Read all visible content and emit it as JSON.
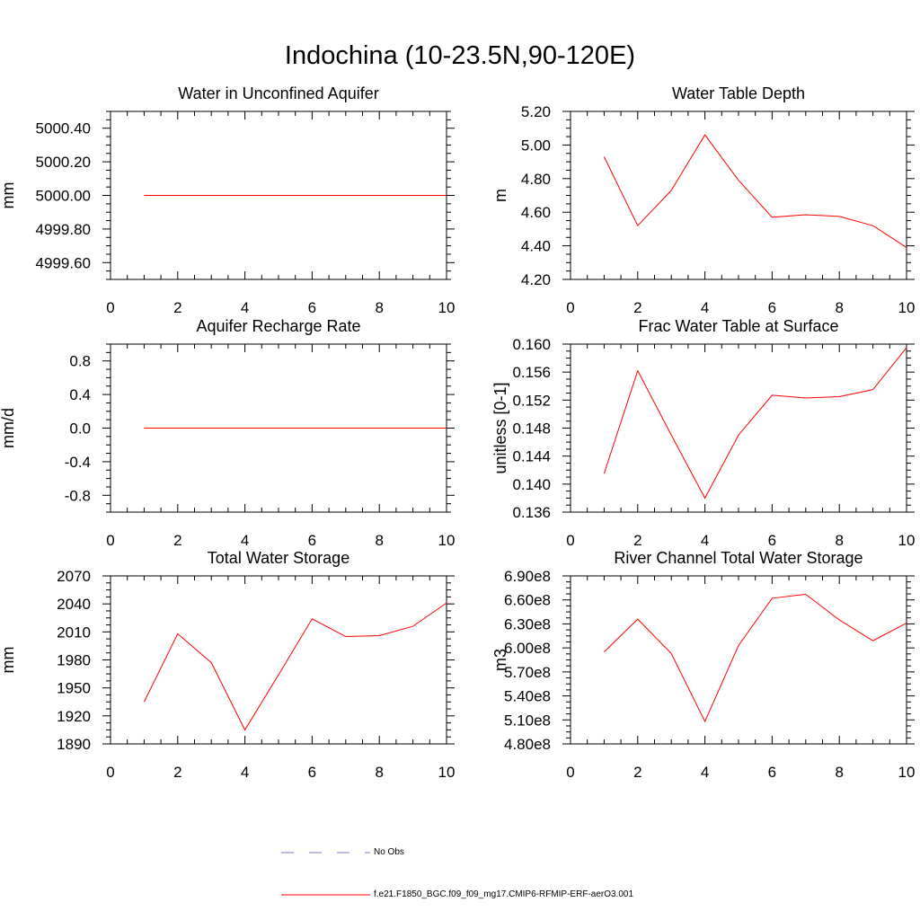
{
  "title": "Indochina (10-23.5N,90-120E)",
  "colors": {
    "model_line": "#ff0000",
    "obs_line": "#7b7bc8",
    "axis": "#000000"
  },
  "legend": [
    {
      "label": "No Obs",
      "style": "dashed",
      "color": "#7b7bc8"
    },
    {
      "label": "f.e21.F1850_BGC.f09_f09_mg17.CMIP6-RFMIP-ERF-aerO3.001",
      "style": "solid",
      "color": "#ff0000"
    }
  ],
  "chart_data": [
    {
      "type": "line",
      "title": "Water in Unconfined Aquifer",
      "ylabel": "mm",
      "xlim": [
        0,
        10
      ],
      "ylim": [
        4999.5,
        5000.5
      ],
      "xticks": [
        0,
        2,
        4,
        6,
        8,
        10
      ],
      "yticks": [
        4999.6,
        4999.8,
        5000.0,
        5000.2,
        5000.4
      ],
      "ytick_labels": [
        "4999.60",
        "4999.80",
        "5000.00",
        "5000.20",
        "5000.40"
      ],
      "x": [
        1,
        2,
        3,
        4,
        5,
        6,
        7,
        8,
        9,
        10
      ],
      "series": [
        {
          "values": [
            5000,
            5000,
            5000,
            5000,
            5000,
            5000,
            5000,
            5000,
            5000,
            5000
          ]
        }
      ]
    },
    {
      "type": "line",
      "title": "Water Table Depth",
      "ylabel": "m",
      "xlim": [
        0,
        10
      ],
      "ylim": [
        4.2,
        5.2
      ],
      "xticks": [
        0,
        2,
        4,
        6,
        8,
        10
      ],
      "yticks": [
        4.2,
        4.4,
        4.6,
        4.8,
        5.0,
        5.2
      ],
      "ytick_labels": [
        "4.20",
        "4.40",
        "4.60",
        "4.80",
        "5.00",
        "5.20"
      ],
      "x": [
        1,
        2,
        3,
        4,
        5,
        6,
        7,
        8,
        9,
        10
      ],
      "series": [
        {
          "values": [
            4.93,
            4.52,
            4.73,
            5.06,
            4.79,
            4.57,
            4.585,
            4.575,
            4.52,
            4.39
          ]
        }
      ]
    },
    {
      "type": "line",
      "title": "Aquifer Recharge Rate",
      "ylabel": "mm/d",
      "xlim": [
        0,
        10
      ],
      "ylim": [
        -1.0,
        1.0
      ],
      "xticks": [
        0,
        2,
        4,
        6,
        8,
        10
      ],
      "yticks": [
        -0.8,
        -0.4,
        0.0,
        0.4,
        0.8
      ],
      "ytick_labels": [
        "-0.8",
        "-0.4",
        "0.0",
        "0.4",
        "0.8"
      ],
      "x": [
        1,
        2,
        3,
        4,
        5,
        6,
        7,
        8,
        9,
        10
      ],
      "series": [
        {
          "values": [
            0,
            0,
            0,
            0,
            0,
            0,
            0,
            0,
            0,
            0
          ]
        }
      ]
    },
    {
      "type": "line",
      "title": "Frac Water Table at Surface",
      "ylabel": "unitless [0-1]",
      "xlim": [
        0,
        10
      ],
      "ylim": [
        0.136,
        0.16
      ],
      "xticks": [
        0,
        2,
        4,
        6,
        8,
        10
      ],
      "yticks": [
        0.136,
        0.14,
        0.144,
        0.148,
        0.152,
        0.156,
        0.16
      ],
      "ytick_labels": [
        "0.136",
        "0.140",
        "0.144",
        "0.148",
        "0.152",
        "0.156",
        "0.160"
      ],
      "x": [
        1,
        2,
        3,
        4,
        5,
        6,
        7,
        8,
        9,
        10
      ],
      "series": [
        {
          "values": [
            0.1415,
            0.1562,
            0.147,
            0.138,
            0.147,
            0.1527,
            0.1523,
            0.1525,
            0.1535,
            0.1595
          ]
        }
      ]
    },
    {
      "type": "line",
      "title": "Total Water Storage",
      "ylabel": "mm",
      "xlim": [
        0,
        10
      ],
      "ylim": [
        1890,
        2070
      ],
      "xticks": [
        0,
        2,
        4,
        6,
        8,
        10
      ],
      "yticks": [
        1890,
        1920,
        1950,
        1980,
        2010,
        2040,
        2070
      ],
      "ytick_labels": [
        "1890",
        "1920",
        "1950",
        "1980",
        "2010",
        "2040",
        "2070"
      ],
      "x": [
        1,
        2,
        3,
        4,
        5,
        6,
        7,
        8,
        9,
        10
      ],
      "series": [
        {
          "values": [
            1935,
            2008,
            1977,
            1905,
            1964,
            2024,
            2005,
            2006,
            2016,
            2041
          ]
        }
      ]
    },
    {
      "type": "line",
      "title": "River Channel Total Water Storage",
      "ylabel": "m3",
      "xlim": [
        0,
        10
      ],
      "ylim": [
        480000000,
        690000000
      ],
      "xticks": [
        0,
        2,
        4,
        6,
        8,
        10
      ],
      "yticks": [
        480000000,
        510000000,
        540000000,
        570000000,
        600000000,
        630000000,
        660000000,
        690000000
      ],
      "ytick_labels": [
        "4.80e8",
        "5.10e8",
        "5.40e8",
        "5.70e8",
        "6.00e8",
        "6.30e8",
        "6.60e8",
        "6.90e8"
      ],
      "x": [
        1,
        2,
        3,
        4,
        5,
        6,
        7,
        8,
        9,
        10
      ],
      "series": [
        {
          "values": [
            595000000,
            636000000,
            593000000,
            508000000,
            603000000,
            662000000,
            667000000,
            635000000,
            609000000,
            631000000
          ]
        }
      ]
    }
  ]
}
